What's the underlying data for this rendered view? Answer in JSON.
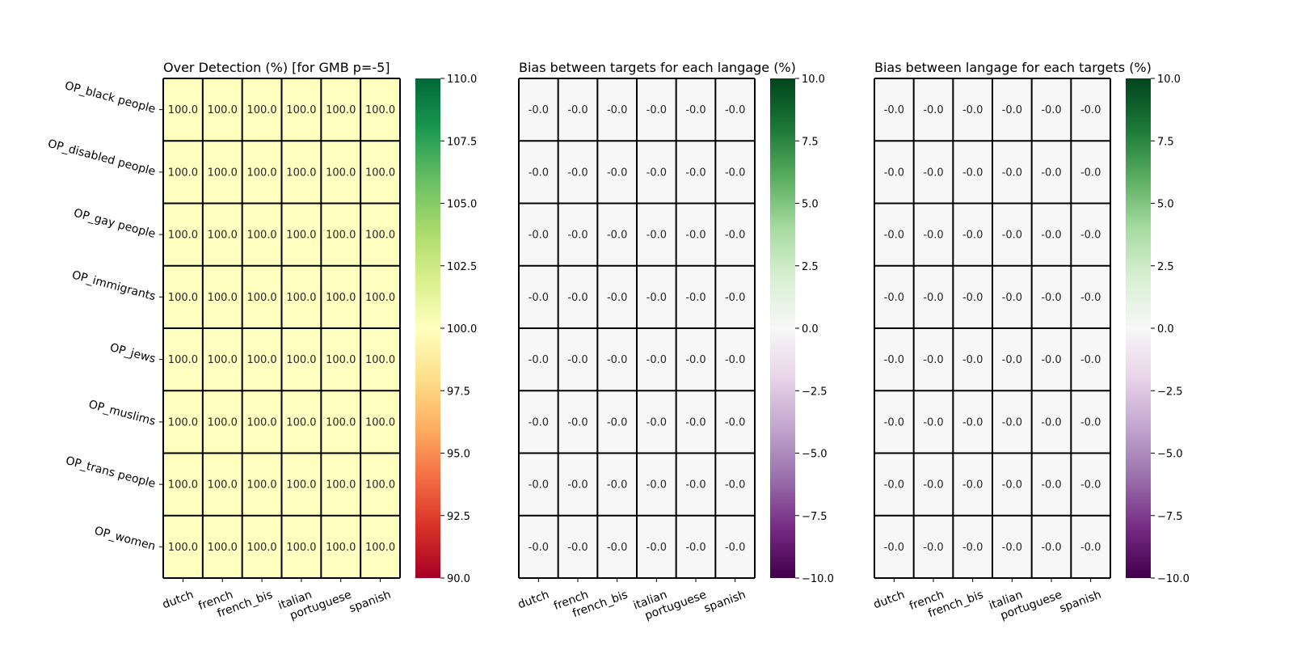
{
  "chart_data": [
    {
      "type": "heatmap",
      "title": "Over Detection (%) [for GMB p=-5]",
      "x_categories": [
        "dutch",
        "french",
        "french_bis",
        "italian",
        "portuguese",
        "spanish"
      ],
      "y_categories": [
        "OP_black people",
        "OP_disabled people",
        "OP_gay people",
        "OP_immigrants",
        "OP_jews",
        "OP_muslims",
        "OP_trans people",
        "OP_women"
      ],
      "values": [
        [
          100.0,
          100.0,
          100.0,
          100.0,
          100.0,
          100.0
        ],
        [
          100.0,
          100.0,
          100.0,
          100.0,
          100.0,
          100.0
        ],
        [
          100.0,
          100.0,
          100.0,
          100.0,
          100.0,
          100.0
        ],
        [
          100.0,
          100.0,
          100.0,
          100.0,
          100.0,
          100.0
        ],
        [
          100.0,
          100.0,
          100.0,
          100.0,
          100.0,
          100.0
        ],
        [
          100.0,
          100.0,
          100.0,
          100.0,
          100.0,
          100.0
        ],
        [
          100.0,
          100.0,
          100.0,
          100.0,
          100.0,
          100.0
        ],
        [
          100.0,
          100.0,
          100.0,
          100.0,
          100.0,
          100.0
        ]
      ],
      "cell_labels": [
        [
          "100.0",
          "100.0",
          "100.0",
          "100.0",
          "100.0",
          "100.0"
        ],
        [
          "100.0",
          "100.0",
          "100.0",
          "100.0",
          "100.0",
          "100.0"
        ],
        [
          "100.0",
          "100.0",
          "100.0",
          "100.0",
          "100.0",
          "100.0"
        ],
        [
          "100.0",
          "100.0",
          "100.0",
          "100.0",
          "100.0",
          "100.0"
        ],
        [
          "100.0",
          "100.0",
          "100.0",
          "100.0",
          "100.0",
          "100.0"
        ],
        [
          "100.0",
          "100.0",
          "100.0",
          "100.0",
          "100.0",
          "100.0"
        ],
        [
          "100.0",
          "100.0",
          "100.0",
          "100.0",
          "100.0",
          "100.0"
        ],
        [
          "100.0",
          "100.0",
          "100.0",
          "100.0",
          "100.0",
          "100.0"
        ]
      ],
      "colormap": "RdYlGn",
      "colormap_stops": [
        "#a50026",
        "#d73027",
        "#f46d43",
        "#fdae61",
        "#fee08b",
        "#ffffbf",
        "#d9ef8b",
        "#a6d96a",
        "#66bd63",
        "#1a9850",
        "#006837"
      ],
      "vmin": 90,
      "vmax": 110,
      "colorbar_ticks": [
        "90.0",
        "92.5",
        "95.0",
        "97.5",
        "100.0",
        "102.5",
        "105.0",
        "107.5",
        "110.0"
      ],
      "grid": true
    },
    {
      "type": "heatmap",
      "title": "Bias between targets for each langage (%)",
      "x_categories": [
        "dutch",
        "french",
        "french_bis",
        "italian",
        "portuguese",
        "spanish"
      ],
      "y_categories": [
        "OP_black people",
        "OP_disabled people",
        "OP_gay people",
        "OP_immigrants",
        "OP_jews",
        "OP_muslims",
        "OP_trans people",
        "OP_women"
      ],
      "values": [
        [
          -0.0,
          -0.0,
          -0.0,
          -0.0,
          -0.0,
          -0.0
        ],
        [
          -0.0,
          -0.0,
          -0.0,
          -0.0,
          -0.0,
          -0.0
        ],
        [
          -0.0,
          -0.0,
          -0.0,
          -0.0,
          -0.0,
          -0.0
        ],
        [
          -0.0,
          -0.0,
          -0.0,
          -0.0,
          -0.0,
          -0.0
        ],
        [
          -0.0,
          -0.0,
          -0.0,
          -0.0,
          -0.0,
          -0.0
        ],
        [
          -0.0,
          -0.0,
          -0.0,
          -0.0,
          -0.0,
          -0.0
        ],
        [
          -0.0,
          -0.0,
          -0.0,
          -0.0,
          -0.0,
          -0.0
        ],
        [
          -0.0,
          -0.0,
          -0.0,
          -0.0,
          -0.0,
          -0.0
        ]
      ],
      "cell_labels": [
        [
          "-0.0",
          "-0.0",
          "-0.0",
          "-0.0",
          "-0.0",
          "-0.0"
        ],
        [
          "-0.0",
          "-0.0",
          "-0.0",
          "-0.0",
          "-0.0",
          "-0.0"
        ],
        [
          "-0.0",
          "-0.0",
          "-0.0",
          "-0.0",
          "-0.0",
          "-0.0"
        ],
        [
          "-0.0",
          "-0.0",
          "-0.0",
          "-0.0",
          "-0.0",
          "-0.0"
        ],
        [
          "-0.0",
          "-0.0",
          "-0.0",
          "-0.0",
          "-0.0",
          "-0.0"
        ],
        [
          "-0.0",
          "-0.0",
          "-0.0",
          "-0.0",
          "-0.0",
          "-0.0"
        ],
        [
          "-0.0",
          "-0.0",
          "-0.0",
          "-0.0",
          "-0.0",
          "-0.0"
        ],
        [
          "-0.0",
          "-0.0",
          "-0.0",
          "-0.0",
          "-0.0",
          "-0.0"
        ]
      ],
      "colormap": "PRGn",
      "colormap_stops": [
        "#40004b",
        "#762a83",
        "#9970ab",
        "#c2a5cf",
        "#e7d4e8",
        "#f7f7f7",
        "#d9f0d3",
        "#a6dba0",
        "#5aae61",
        "#1b7837",
        "#00441b"
      ],
      "vmin": -10,
      "vmax": 10,
      "colorbar_ticks": [
        "−10.0",
        "−7.5",
        "−5.0",
        "−2.5",
        "0.0",
        "2.5",
        "5.0",
        "7.5",
        "10.0"
      ],
      "grid": true
    },
    {
      "type": "heatmap",
      "title": "Bias between langage for each targets (%)",
      "x_categories": [
        "dutch",
        "french",
        "french_bis",
        "italian",
        "portuguese",
        "spanish"
      ],
      "y_categories": [
        "OP_black people",
        "OP_disabled people",
        "OP_gay people",
        "OP_immigrants",
        "OP_jews",
        "OP_muslims",
        "OP_trans people",
        "OP_women"
      ],
      "values": [
        [
          -0.0,
          -0.0,
          -0.0,
          -0.0,
          -0.0,
          -0.0
        ],
        [
          -0.0,
          -0.0,
          -0.0,
          -0.0,
          -0.0,
          -0.0
        ],
        [
          -0.0,
          -0.0,
          -0.0,
          -0.0,
          -0.0,
          -0.0
        ],
        [
          -0.0,
          -0.0,
          -0.0,
          -0.0,
          -0.0,
          -0.0
        ],
        [
          -0.0,
          -0.0,
          -0.0,
          -0.0,
          -0.0,
          -0.0
        ],
        [
          -0.0,
          -0.0,
          -0.0,
          -0.0,
          -0.0,
          -0.0
        ],
        [
          -0.0,
          -0.0,
          -0.0,
          -0.0,
          -0.0,
          -0.0
        ],
        [
          -0.0,
          -0.0,
          -0.0,
          -0.0,
          -0.0,
          -0.0
        ]
      ],
      "cell_labels": [
        [
          "-0.0",
          "-0.0",
          "-0.0",
          "-0.0",
          "-0.0",
          "-0.0"
        ],
        [
          "-0.0",
          "-0.0",
          "-0.0",
          "-0.0",
          "-0.0",
          "-0.0"
        ],
        [
          "-0.0",
          "-0.0",
          "-0.0",
          "-0.0",
          "-0.0",
          "-0.0"
        ],
        [
          "-0.0",
          "-0.0",
          "-0.0",
          "-0.0",
          "-0.0",
          "-0.0"
        ],
        [
          "-0.0",
          "-0.0",
          "-0.0",
          "-0.0",
          "-0.0",
          "-0.0"
        ],
        [
          "-0.0",
          "-0.0",
          "-0.0",
          "-0.0",
          "-0.0",
          "-0.0"
        ],
        [
          "-0.0",
          "-0.0",
          "-0.0",
          "-0.0",
          "-0.0",
          "-0.0"
        ],
        [
          "-0.0",
          "-0.0",
          "-0.0",
          "-0.0",
          "-0.0",
          "-0.0"
        ]
      ],
      "colormap": "PRGn",
      "colormap_stops": [
        "#40004b",
        "#762a83",
        "#9970ab",
        "#c2a5cf",
        "#e7d4e8",
        "#f7f7f7",
        "#d9f0d3",
        "#a6dba0",
        "#5aae61",
        "#1b7837",
        "#00441b"
      ],
      "vmin": -10,
      "vmax": 10,
      "colorbar_ticks": [
        "−10.0",
        "−7.5",
        "−5.0",
        "−2.5",
        "0.0",
        "2.5",
        "5.0",
        "7.5",
        "10.0"
      ],
      "grid": true
    }
  ]
}
